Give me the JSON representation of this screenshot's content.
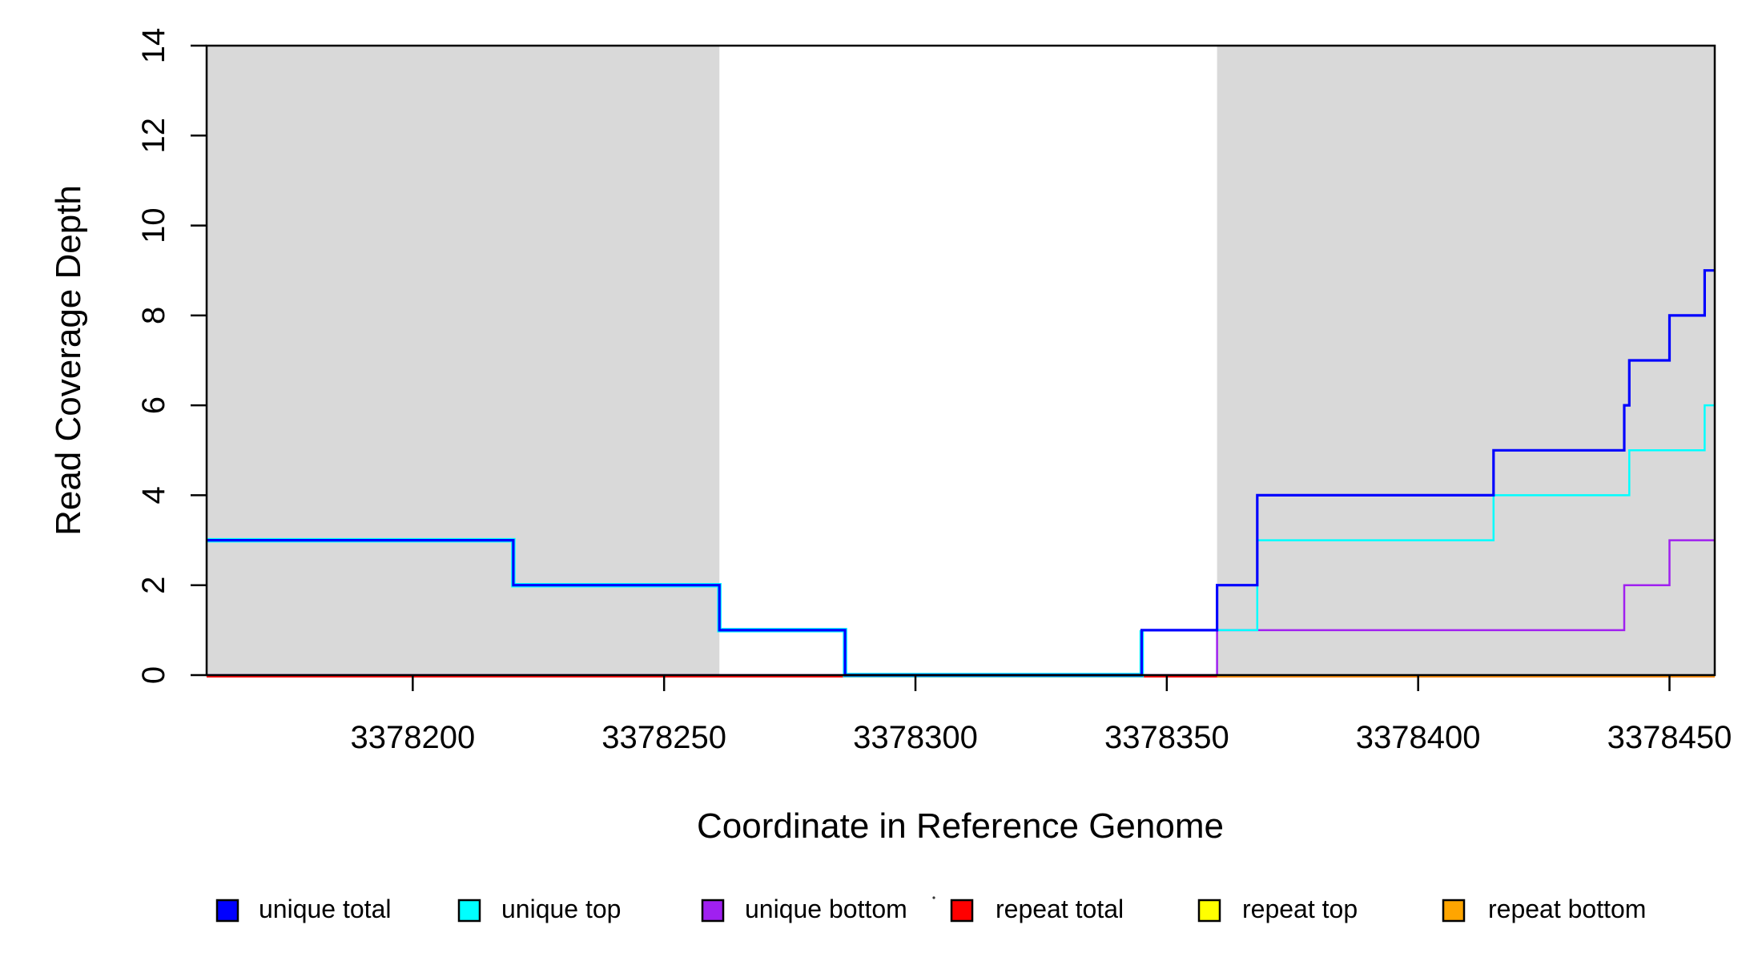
{
  "figure": {
    "background": "#ffffff",
    "shaded_band_color": "#d9d9d9",
    "axis_color": "#000000"
  },
  "chart_data": {
    "type": "line",
    "subtype": "step-hv",
    "title": "",
    "xlabel": "Coordinate in Reference Genome",
    "ylabel": "Read Coverage Depth",
    "xlim": [
      3378159,
      3378459
    ],
    "ylim": [
      0,
      14
    ],
    "x_ticks": [
      3378200,
      3378250,
      3378300,
      3378350,
      3378400,
      3378450
    ],
    "y_ticks": [
      0,
      2,
      4,
      6,
      8,
      10,
      12,
      14
    ],
    "grid": false,
    "legend_position": "bottom",
    "shaded_regions": [
      {
        "x0": 3378159,
        "x1": 3378261
      },
      {
        "x0": 3378360,
        "x1": 3378459
      }
    ],
    "series": [
      {
        "name": "unique total",
        "color": "#0000ff",
        "points": [
          [
            3378159,
            3
          ],
          [
            3378220,
            3
          ],
          [
            3378220,
            2
          ],
          [
            3378261,
            2
          ],
          [
            3378261,
            1
          ],
          [
            3378286,
            1
          ],
          [
            3378286,
            0
          ],
          [
            3378345,
            0
          ],
          [
            3378345,
            1
          ],
          [
            3378360,
            1
          ],
          [
            3378360,
            2
          ],
          [
            3378368,
            2
          ],
          [
            3378368,
            4
          ],
          [
            3378415,
            4
          ],
          [
            3378415,
            5
          ],
          [
            3378441,
            5
          ],
          [
            3378441,
            6
          ],
          [
            3378442,
            6
          ],
          [
            3378442,
            7
          ],
          [
            3378450,
            7
          ],
          [
            3378450,
            8
          ],
          [
            3378457,
            8
          ],
          [
            3378457,
            9
          ],
          [
            3378459,
            9
          ]
        ]
      },
      {
        "name": "unique top",
        "color": "#00ffff",
        "points": [
          [
            3378159,
            3
          ],
          [
            3378220,
            3
          ],
          [
            3378220,
            2
          ],
          [
            3378261,
            2
          ],
          [
            3378261,
            1
          ],
          [
            3378286,
            1
          ],
          [
            3378286,
            0
          ],
          [
            3378345,
            0
          ],
          [
            3378345,
            1
          ],
          [
            3378368,
            1
          ],
          [
            3378368,
            3
          ],
          [
            3378415,
            3
          ],
          [
            3378415,
            4
          ],
          [
            3378442,
            4
          ],
          [
            3378442,
            5
          ],
          [
            3378457,
            5
          ],
          [
            3378457,
            6
          ],
          [
            3378459,
            6
          ]
        ]
      },
      {
        "name": "unique bottom",
        "color": "#a020f0",
        "points": [
          [
            3378159,
            0
          ],
          [
            3378360,
            0
          ],
          [
            3378360,
            1
          ],
          [
            3378441,
            1
          ],
          [
            3378441,
            2
          ],
          [
            3378450,
            2
          ],
          [
            3378450,
            3
          ],
          [
            3378459,
            3
          ]
        ]
      },
      {
        "name": "repeat total",
        "color": "#ff0000",
        "points": [
          [
            3378159,
            0
          ],
          [
            3378459,
            0
          ]
        ]
      },
      {
        "name": "repeat top",
        "color": "#ffff00",
        "points": [
          [
            3378159,
            0
          ],
          [
            3378459,
            0
          ]
        ]
      },
      {
        "name": "repeat bottom",
        "color": "#ffa500",
        "points": [
          [
            3378360,
            0
          ],
          [
            3378459,
            0
          ]
        ]
      }
    ],
    "legend": {
      "entries": [
        {
          "label": "unique total",
          "color": "#0000ff"
        },
        {
          "label": "unique top",
          "color": "#00ffff"
        },
        {
          "label": "unique bottom",
          "color": "#a020f0"
        },
        {
          "label": "repeat total",
          "color": "#ff0000"
        },
        {
          "label": "repeat top",
          "color": "#ffff00"
        },
        {
          "label": "repeat bottom",
          "color": "#ffa500"
        }
      ]
    }
  }
}
